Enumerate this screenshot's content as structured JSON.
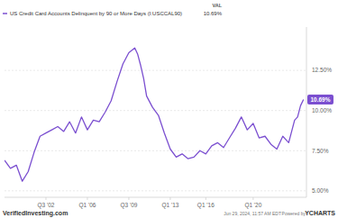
{
  "chart_data": {
    "type": "line",
    "legend_header": "VAL",
    "legend": "top-left",
    "grid": true,
    "x": [
      1999.0,
      1999.5,
      2000.0,
      2000.5,
      2001.0,
      2001.5,
      2002.0,
      2002.5,
      2003.0,
      2003.5,
      2004.0,
      2004.5,
      2005.0,
      2005.5,
      2006.0,
      2006.5,
      2007.0,
      2007.5,
      2008.0,
      2008.5,
      2009.0,
      2009.5,
      2010.0,
      2010.25,
      2010.5,
      2010.75,
      2011.0,
      2011.5,
      2012.0,
      2012.5,
      2013.0,
      2013.5,
      2014.0,
      2014.5,
      2015.0,
      2015.5,
      2016.0,
      2016.5,
      2017.0,
      2017.5,
      2018.0,
      2018.5,
      2019.0,
      2019.5,
      2020.0,
      2020.5,
      2021.0,
      2021.5,
      2022.0,
      2022.5,
      2023.0,
      2023.5,
      2023.75,
      2024.0,
      2024.25
    ],
    "series": [
      {
        "name": "US Credit Card Accounts Delinquent by 90 or More Days (I:USCCAL90)",
        "color": "#7b4fd0",
        "values": [
          6.9,
          6.4,
          6.6,
          5.6,
          6.2,
          7.4,
          8.4,
          8.6,
          8.8,
          9.0,
          8.7,
          9.3,
          8.6,
          9.6,
          8.8,
          9.4,
          9.3,
          9.9,
          10.6,
          11.8,
          12.9,
          13.6,
          13.9,
          13.5,
          12.8,
          12.0,
          10.9,
          10.2,
          9.7,
          8.6,
          7.6,
          7.1,
          7.3,
          7.0,
          7.1,
          7.5,
          7.3,
          7.8,
          8.0,
          7.7,
          8.3,
          8.9,
          9.6,
          8.8,
          9.2,
          8.3,
          8.4,
          7.9,
          7.6,
          8.4,
          8.0,
          9.4,
          9.6,
          10.3,
          10.69
        ]
      }
    ],
    "annotations": [
      {
        "text": "10.69%",
        "x": 2024.25,
        "y": 10.69
      }
    ],
    "xlim": [
      1999.0,
      2024.5
    ],
    "xticks": [
      {
        "value": 2002.5,
        "label": "Q3 '02"
      },
      {
        "value": 2006.0,
        "label": "Q1 '06"
      },
      {
        "value": 2009.5,
        "label": "Q3 '09"
      },
      {
        "value": 2013.0,
        "label": "Q1 '13"
      },
      {
        "value": 2016.0,
        "label": "Q1 '16"
      },
      {
        "value": 2020.0,
        "label": "Q1 '20"
      }
    ],
    "ylim": [
      4.6,
      15.2
    ],
    "yticks": [
      {
        "value": 5,
        "label": "5.00%"
      },
      {
        "value": 7.5,
        "label": "7.50%"
      },
      {
        "value": 10,
        "label": "10.00%"
      },
      {
        "value": 12.5,
        "label": "12.50%"
      }
    ],
    "source": "VerifiedInvesting.com",
    "footer": "Jun 29, 2024, 11:57 AM EDT",
    "powered_by": "Powered by",
    "logo": "YCHARTS"
  }
}
